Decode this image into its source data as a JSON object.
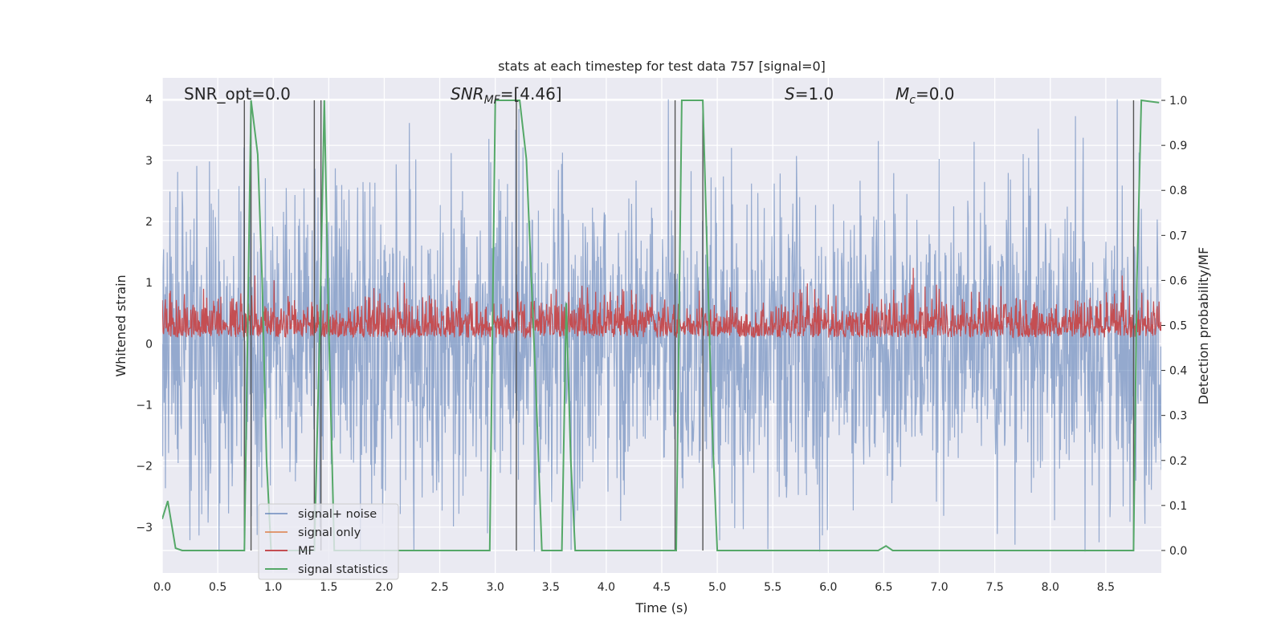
{
  "chart_data": {
    "type": "line",
    "title": "stats at each timestep for test data 757 [signal=0]",
    "xlabel": "Time (s)",
    "ylabel": "Whitened strain",
    "y2label": "Detection probability/MF",
    "xlim": [
      0.0,
      9.0
    ],
    "ylim": [
      -3.75,
      4.35
    ],
    "y2lim": [
      -0.05,
      1.05
    ],
    "x_ticks": [
      "0.0",
      "0.5",
      "1.0",
      "1.5",
      "2.0",
      "2.5",
      "3.0",
      "3.5",
      "4.0",
      "4.5",
      "5.0",
      "5.5",
      "6.0",
      "6.5",
      "7.0",
      "7.5",
      "8.0",
      "8.5"
    ],
    "y_ticks": [
      "4",
      "3",
      "2",
      "1",
      "0",
      "−1",
      "−2",
      "−3"
    ],
    "y2_ticks": [
      "1.0",
      "0.9",
      "0.8",
      "0.7",
      "0.6",
      "0.5",
      "0.4",
      "0.3",
      "0.2",
      "0.1",
      "0.0"
    ],
    "grid": true,
    "legend_position": "lower-left",
    "annotations": {
      "snr_opt": "SNR_opt=0.0",
      "snr_mf_prefix": "SNR",
      "snr_mf_sub": "MF",
      "snr_mf_suffix": "=[4.46]",
      "s_prefix": "S",
      "s_suffix": "=1.0",
      "mc_prefix": "M",
      "mc_sub": "c",
      "mc_suffix": "=0.0"
    },
    "series": [
      {
        "name": "signal+ noise",
        "axis": "left",
        "color": "#4c72b0",
        "style": "dense noise band",
        "band_typical": [
          -1.2,
          1.3
        ],
        "band_extreme": [
          -3.4,
          4.0
        ]
      },
      {
        "name": "signal only",
        "axis": "left",
        "color": "#dd8452",
        "values": []
      },
      {
        "name": "MF",
        "axis": "right",
        "color": "#c44e52",
        "style": "dense noise band",
        "baseline": 0.5,
        "band_typical": [
          0.46,
          0.55
        ],
        "band_extreme": [
          0.42,
          0.63
        ]
      },
      {
        "name": "signal statistics",
        "axis": "right",
        "color": "#55a868",
        "x": [
          0.0,
          0.05,
          0.12,
          0.18,
          0.74,
          0.8,
          0.86,
          0.9,
          0.94,
          0.98,
          1.37,
          1.42,
          1.46,
          1.5,
          1.55,
          2.95,
          3.0,
          3.2,
          3.22,
          3.28,
          3.36,
          3.42,
          3.6,
          3.64,
          3.68,
          3.72,
          4.63,
          4.66,
          4.68,
          4.87,
          4.95,
          5.0,
          6.45,
          6.52,
          6.58,
          8.75,
          8.78,
          8.82,
          8.98
        ],
        "values": [
          0.07,
          0.11,
          0.005,
          0.0,
          0.0,
          1.0,
          0.88,
          0.6,
          0.2,
          0.0,
          0.0,
          0.5,
          1.0,
          0.5,
          0.0,
          0.0,
          1.0,
          1.0,
          1.0,
          0.87,
          0.4,
          0.0,
          0.0,
          0.55,
          0.2,
          0.0,
          0.0,
          0.6,
          1.0,
          1.0,
          0.3,
          0.0,
          0.0,
          0.01,
          0.0,
          0.0,
          0.6,
          1.0,
          0.995
        ]
      }
    ],
    "vertical_markers_x": [
      0.74,
      0.8,
      1.37,
      1.43,
      3.19,
      4.62,
      4.87,
      8.75
    ]
  },
  "colors": {
    "axes_bg": "#eaeaf2",
    "grid": "#ffffff",
    "text": "#262626"
  }
}
